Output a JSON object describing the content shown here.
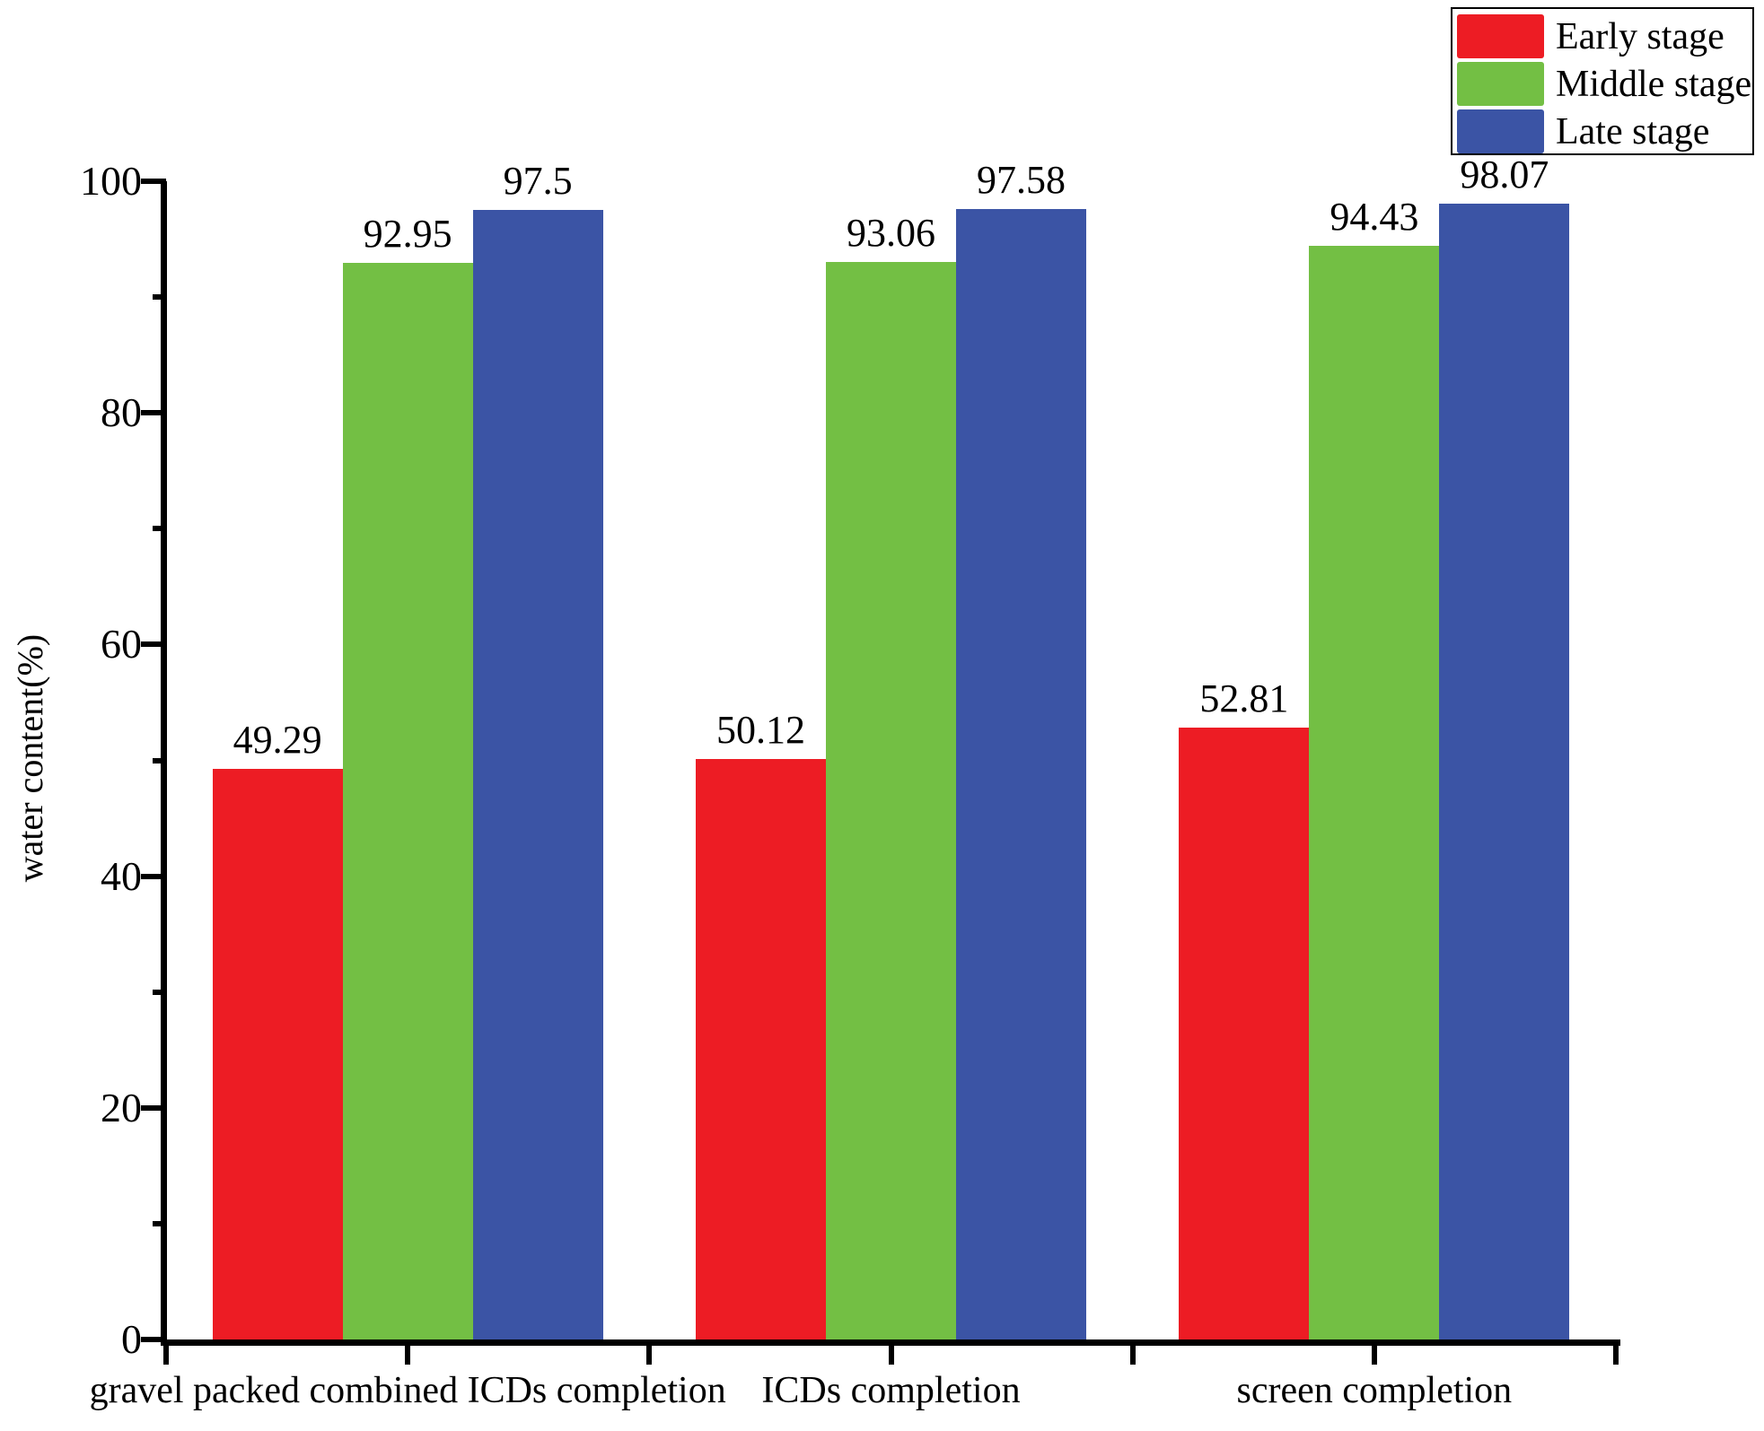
{
  "chart_data": {
    "type": "bar",
    "title": "",
    "xlabel": "",
    "ylabel": "water content(%)",
    "categories": [
      "gravel packed combined ICDs completion",
      "ICDs completion",
      "screen completion"
    ],
    "series": [
      {
        "name": "Early stage",
        "color": "#ED1C24",
        "values": [
          49.29,
          50.12,
          52.81
        ]
      },
      {
        "name": "Middle stage",
        "color": "#73BF44",
        "values": [
          92.95,
          93.06,
          94.43
        ]
      },
      {
        "name": "Late stage",
        "color": "#3B54A5",
        "values": [
          97.5,
          97.58,
          98.07
        ]
      }
    ],
    "ylim": [
      0,
      100
    ],
    "yticks_major": [
      0,
      20,
      40,
      60,
      80,
      100
    ],
    "yticks_minor": [
      10,
      30,
      50,
      70,
      90
    ],
    "grid": false,
    "bar_value_labels_shown": true,
    "legend_position": "top-right",
    "axis_color": "#000000",
    "background_color": "#ffffff"
  }
}
